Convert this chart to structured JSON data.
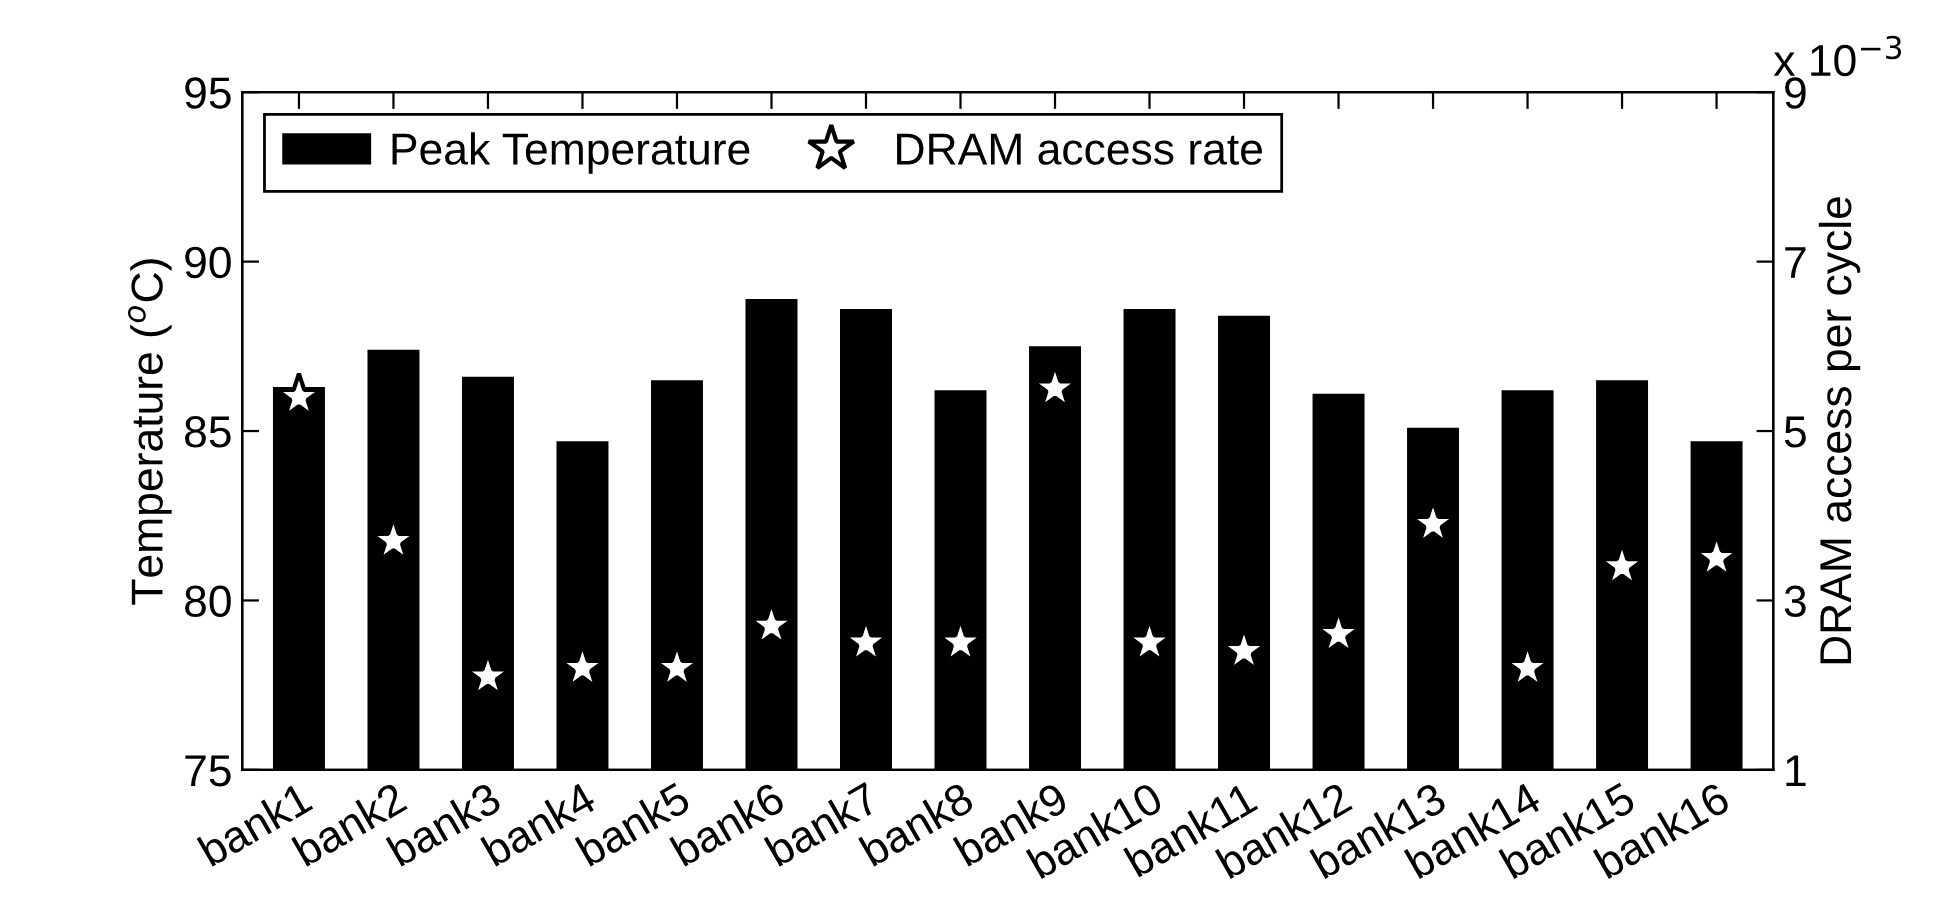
{
  "chart_data": {
    "type": "bar",
    "ylabel": "Temperature ($^{o}$C)",
    "y2label": "DRAM access per cycle",
    "categories": [
      "bank1",
      "bank2",
      "bank3",
      "bank4",
      "bank5",
      "bank6",
      "bank7",
      "bank8",
      "bank9",
      "bank10",
      "bank11",
      "bank12",
      "bank13",
      "bank14",
      "bank15",
      "bank16"
    ],
    "series": [
      {
        "name": "Peak Temperature",
        "color": "#000000",
        "values": [
          86.3,
          87.4,
          86.6,
          84.7,
          86.5,
          88.9,
          88.6,
          86.2,
          87.5,
          88.6,
          88.4,
          86.1,
          85.1,
          86.2,
          86.5,
          84.7
        ]
      },
      {
        "name": "DRAM access rate",
        "type": "scatter",
        "axis": "y2",
        "color": "#ffffff",
        "marker": "star",
        "values": [
          5.4,
          3.7,
          2.1,
          2.2,
          2.2,
          2.7,
          2.5,
          2.5,
          5.5,
          2.5,
          2.4,
          2.6,
          3.9,
          2.2,
          3.4,
          3.5
        ]
      }
    ],
    "ylim": [
      75,
      95
    ],
    "yticks": [
      75,
      80,
      85,
      90,
      95
    ],
    "y2lim": [
      1,
      9
    ],
    "y2ticks": [
      1,
      3,
      5,
      7,
      9
    ],
    "annotations": [
      "x 10$^{−3}$"
    ],
    "legend": "top left",
    "grid": false
  }
}
